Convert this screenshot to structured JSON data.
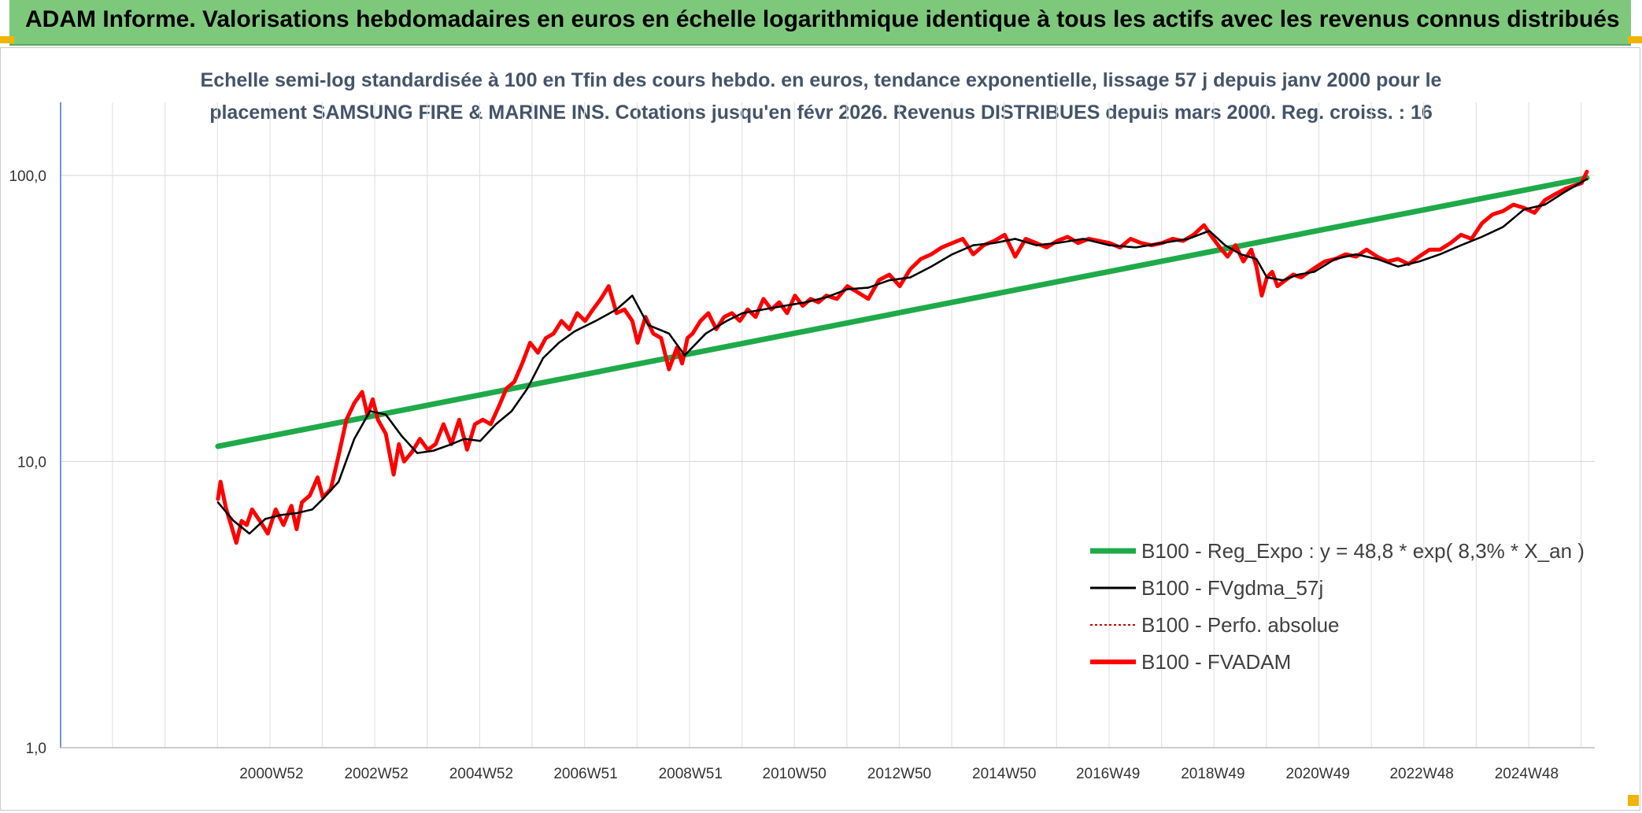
{
  "header": {
    "title": "ADAM Informe. Valorisations hebdomadaires en euros en échelle logarithmique identique à tous les actifs avec les revenus connus distribués"
  },
  "chart_data": {
    "type": "line",
    "title_line1": "Echelle semi-log standardisée à 100 en Tfin des cours hebdo. en euros, tendance exponentielle, lissage 57 j depuis janv 2000 pour le",
    "title_line2": "placement SAMSUNG FIRE & MARINE INS. Cotations jusqu'en févr 2026. Revenus DISTRIBUES depuis mars 2000. Reg. croiss. : 16",
    "y_scale": "log",
    "ylim": [
      1,
      180
    ],
    "y_ticks": [
      {
        "value": 1,
        "label": "1,0"
      },
      {
        "value": 10,
        "label": "10,0"
      },
      {
        "value": 100,
        "label": "100,0"
      }
    ],
    "xlim": [
      1997.0,
      2026.25
    ],
    "x_ticks": [
      {
        "value": 2000.99,
        "label": "2000W52"
      },
      {
        "value": 2002.99,
        "label": "2002W52"
      },
      {
        "value": 2004.99,
        "label": "2004W52"
      },
      {
        "value": 2006.98,
        "label": "2006W51"
      },
      {
        "value": 2008.98,
        "label": "2008W51"
      },
      {
        "value": 2010.96,
        "label": "2010W50"
      },
      {
        "value": 2012.96,
        "label": "2012W50"
      },
      {
        "value": 2014.96,
        "label": "2014W50"
      },
      {
        "value": 2016.94,
        "label": "2016W49"
      },
      {
        "value": 2018.94,
        "label": "2018W49"
      },
      {
        "value": 2020.94,
        "label": "2020W49"
      },
      {
        "value": 2022.92,
        "label": "2022W48"
      },
      {
        "value": 2024.92,
        "label": "2024W48"
      }
    ],
    "grid": true,
    "legend_position": "right",
    "series": [
      {
        "name": "B100 - Reg_Expo : y = 48,8 * exp( 8,3% *  X_an )",
        "color": "#1faa4a",
        "style": "solid-thick",
        "x": [
          2000.0,
          2026.1
        ],
        "y": [
          11.3,
          98.0
        ]
      },
      {
        "name": "B100 - FVgdma_57j",
        "color": "#000000",
        "style": "solid",
        "x": [
          2000.0,
          2000.3,
          2000.6,
          2000.9,
          2001.2,
          2001.5,
          2001.8,
          2002.0,
          2002.3,
          2002.6,
          2002.9,
          2003.2,
          2003.5,
          2003.8,
          2004.1,
          2004.4,
          2004.7,
          2005.0,
          2005.3,
          2005.6,
          2005.9,
          2006.2,
          2006.5,
          2006.8,
          2007.2,
          2007.6,
          2007.9,
          2008.2,
          2008.6,
          2008.9,
          2009.3,
          2009.7,
          2010.0,
          2010.4,
          2010.8,
          2011.2,
          2011.6,
          2012.0,
          2012.4,
          2012.8,
          2013.2,
          2013.6,
          2014.0,
          2014.4,
          2014.8,
          2015.2,
          2015.6,
          2016.0,
          2016.5,
          2017.0,
          2017.5,
          2018.0,
          2018.5,
          2018.9,
          2019.2,
          2019.5,
          2019.8,
          2020.0,
          2020.3,
          2020.6,
          2020.9,
          2021.3,
          2021.7,
          2022.1,
          2022.5,
          2022.9,
          2023.3,
          2023.7,
          2024.1,
          2024.5,
          2024.9,
          2025.3,
          2025.7,
          2026.1
        ],
        "y": [
          7.2,
          6.2,
          5.6,
          6.3,
          6.5,
          6.6,
          6.8,
          7.4,
          8.5,
          12.0,
          15.0,
          14.6,
          12.3,
          10.7,
          10.9,
          11.4,
          12.0,
          11.8,
          13.5,
          15.0,
          18.0,
          23.0,
          26.0,
          28.5,
          31.0,
          34.0,
          38.0,
          30.0,
          28.0,
          23.5,
          28.0,
          31.0,
          33.0,
          34.0,
          35.0,
          36.0,
          37.5,
          40.0,
          40.5,
          43.0,
          44.0,
          48.0,
          53.0,
          57.0,
          58.0,
          60.0,
          57.0,
          58.0,
          60.0,
          57.0,
          56.0,
          58.0,
          60.0,
          64.0,
          57.0,
          53.0,
          51.0,
          44.0,
          43.0,
          45.0,
          46.0,
          51.0,
          53.0,
          51.0,
          48.0,
          50.0,
          53.0,
          57.0,
          61.0,
          66.0,
          76.0,
          79.0,
          88.0,
          97.0
        ]
      },
      {
        "name": "B100 - Perfo. absolue",
        "color": "#d00000",
        "style": "dotted",
        "x": [],
        "y": []
      },
      {
        "name": "B100 - FVADAM",
        "color": "#ff0000",
        "style": "solid-thick",
        "x": [
          2000.0,
          2000.05,
          2000.15,
          2000.25,
          2000.35,
          2000.45,
          2000.55,
          2000.65,
          2000.8,
          2000.95,
          2001.1,
          2001.25,
          2001.4,
          2001.5,
          2001.6,
          2001.75,
          2001.9,
          2002.0,
          2002.15,
          2002.3,
          2002.45,
          2002.6,
          2002.75,
          2002.85,
          2002.95,
          2003.05,
          2003.2,
          2003.35,
          2003.45,
          2003.55,
          2003.7,
          2003.85,
          2004.0,
          2004.15,
          2004.3,
          2004.45,
          2004.6,
          2004.75,
          2004.9,
          2005.05,
          2005.2,
          2005.35,
          2005.5,
          2005.65,
          2005.8,
          2005.95,
          2006.1,
          2006.25,
          2006.4,
          2006.55,
          2006.7,
          2006.85,
          2007.0,
          2007.15,
          2007.3,
          2007.45,
          2007.6,
          2007.75,
          2007.9,
          2008.0,
          2008.15,
          2008.3,
          2008.45,
          2008.6,
          2008.75,
          2008.85,
          2008.95,
          2009.05,
          2009.2,
          2009.35,
          2009.5,
          2009.65,
          2009.8,
          2009.95,
          2010.1,
          2010.25,
          2010.4,
          2010.55,
          2010.7,
          2010.85,
          2011.0,
          2011.15,
          2011.3,
          2011.45,
          2011.6,
          2011.8,
          2012.0,
          2012.2,
          2012.4,
          2012.6,
          2012.8,
          2013.0,
          2013.2,
          2013.4,
          2013.6,
          2013.8,
          2014.0,
          2014.2,
          2014.4,
          2014.6,
          2014.8,
          2015.0,
          2015.2,
          2015.4,
          2015.6,
          2015.8,
          2016.0,
          2016.2,
          2016.4,
          2016.6,
          2016.8,
          2017.0,
          2017.2,
          2017.4,
          2017.6,
          2017.8,
          2018.0,
          2018.2,
          2018.4,
          2018.6,
          2018.8,
          2018.95,
          2019.1,
          2019.25,
          2019.4,
          2019.55,
          2019.7,
          2019.8,
          2019.9,
          2020.0,
          2020.1,
          2020.2,
          2020.35,
          2020.5,
          2020.65,
          2020.8,
          2020.95,
          2021.1,
          2021.3,
          2021.5,
          2021.7,
          2021.9,
          2022.1,
          2022.3,
          2022.5,
          2022.7,
          2022.9,
          2023.1,
          2023.3,
          2023.5,
          2023.7,
          2023.9,
          2024.1,
          2024.3,
          2024.5,
          2024.7,
          2024.9,
          2025.1,
          2025.3,
          2025.5,
          2025.7,
          2025.85,
          2026.0,
          2026.1
        ],
        "y": [
          7.4,
          8.5,
          6.9,
          6.0,
          5.2,
          6.2,
          6.0,
          6.8,
          6.2,
          5.6,
          6.8,
          6.0,
          7.0,
          5.8,
          7.2,
          7.6,
          8.8,
          7.5,
          8.0,
          10.5,
          14.0,
          16.0,
          17.5,
          14.5,
          16.5,
          14.0,
          12.5,
          9.0,
          11.5,
          10.0,
          10.8,
          12.0,
          11.0,
          11.5,
          13.5,
          11.5,
          14.0,
          11.0,
          13.5,
          14.0,
          13.5,
          15.5,
          18.0,
          19.0,
          22.0,
          26.0,
          24.0,
          27.0,
          28.0,
          31.0,
          29.0,
          33.0,
          31.0,
          34.0,
          37.0,
          41.0,
          33.0,
          34.0,
          31.0,
          26.0,
          32.0,
          28.0,
          27.0,
          21.0,
          25.0,
          22.0,
          27.0,
          28.0,
          31.0,
          33.0,
          29.0,
          32.0,
          33.0,
          31.0,
          34.0,
          32.0,
          37.0,
          34.0,
          36.0,
          33.0,
          38.0,
          35.0,
          37.0,
          36.0,
          38.0,
          37.0,
          41.0,
          39.0,
          37.0,
          43.0,
          45.0,
          41.0,
          47.0,
          51.0,
          53.0,
          56.0,
          58.0,
          60.0,
          53.0,
          57.0,
          59.0,
          62.0,
          52.0,
          60.0,
          58.0,
          56.0,
          59.0,
          61.0,
          58.0,
          60.0,
          59.0,
          58.0,
          56.0,
          60.0,
          58.0,
          57.0,
          58.0,
          60.0,
          59.0,
          62.0,
          67.0,
          61.0,
          56.0,
          52.0,
          57.0,
          50.0,
          55.0,
          48.0,
          38.0,
          44.0,
          46.0,
          41.0,
          43.0,
          45.0,
          44.0,
          46.0,
          48.0,
          50.0,
          51.0,
          53.0,
          52.0,
          55.0,
          52.0,
          50.0,
          51.0,
          49.0,
          52.0,
          55.0,
          55.0,
          58.0,
          62.0,
          60.0,
          68.0,
          73.0,
          75.0,
          79.0,
          77.0,
          74.0,
          82.0,
          86.0,
          90.0,
          92.0,
          94.0,
          103.0
        ]
      }
    ]
  }
}
